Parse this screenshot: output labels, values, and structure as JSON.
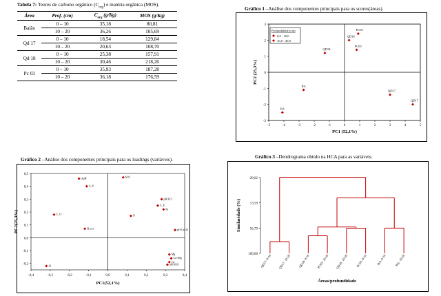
{
  "table": {
    "caption_label": "Tabela 7:",
    "caption_text": "Teores de carbono orgânico (C",
    "caption_sub": "org",
    "caption_rest": ") e matéria orgânica (MOS).",
    "headers": [
      "Área",
      "Prof. (cm)",
      "C",
      "MOS (g/Kg)"
    ],
    "header_sub": "org",
    "header_unit": " (g/Kg)",
    "groups": [
      {
        "area": "Baião",
        "rows": [
          [
            "0 – 10",
            "35,18",
            "80,81"
          ],
          [
            "10 – 20",
            "36,26",
            "105,69"
          ]
        ]
      },
      {
        "area": "Qd 17",
        "rows": [
          [
            "0 – 10",
            "18,54",
            "129,84"
          ],
          [
            "10 – 20",
            "20,63",
            "108,70"
          ]
        ]
      },
      {
        "area": "Qd 18",
        "rows": [
          [
            "0 – 10",
            "25,38",
            "157,91"
          ],
          [
            "10 – 20",
            "30,46",
            "218,26"
          ]
        ]
      },
      {
        "area": "Pc 03",
        "rows": [
          [
            "0 – 10",
            "35,93",
            "187,28"
          ],
          [
            "10 – 20",
            "36,18",
            "176,59"
          ]
        ]
      }
    ]
  },
  "figure1": {
    "label": "Gráfico 1",
    "title": " –Análise dos componentes principais para os scores(áreas).",
    "legend_title": "Profundidade (cm)",
    "colors": {
      "marker": "#c00000"
    }
  },
  "figure2": {
    "label": "Gráfico 2",
    "title": " –Análise dos componentes principais para os loadings (variáveis).",
    "colors": {
      "marker": "#c00000"
    }
  },
  "figure3": {
    "label": "Gráfico 3",
    "title": " –Dendrograma obtido na HCA para as variáveis.",
    "colors": {
      "line": "#c00000"
    }
  },
  "chart_data": [
    {
      "type": "scatter",
      "xlabel": "PC1 (52,1%)",
      "ylabel": "PC2 (25,3%)",
      "xlim": [
        -5,
        5
      ],
      "ylim": [
        -3,
        3
      ],
      "xticks": [
        "-5",
        "-4",
        "-3",
        "-2",
        "-1",
        "0",
        "1",
        "2",
        "3",
        "4",
        "5"
      ],
      "yticks": [
        "3",
        "2",
        "1",
        "0",
        "-1",
        "-2",
        "-3"
      ],
      "legend": [
        "0,0 - 10,0",
        "10,0 - 20,0"
      ],
      "points": [
        {
          "label": "PC03",
          "x": 0.9,
          "y": 2.4
        },
        {
          "label": "QD18",
          "x": 0.3,
          "y": 2.0
        },
        {
          "label": "QD18",
          "x": -1.3,
          "y": 1.2
        },
        {
          "label": "PC03",
          "x": 0.8,
          "y": 1.4
        },
        {
          "label": "BA",
          "x": -2.7,
          "y": -1.1
        },
        {
          "label": "BA",
          "x": -4.1,
          "y": -2.5
        },
        {
          "label": "QD17",
          "x": 3.0,
          "y": -1.4
        },
        {
          "label": "QD17",
          "x": 4.5,
          "y": -2.0
        }
      ]
    },
    {
      "type": "scatter",
      "xlabel": "PC1(52,1%)",
      "ylabel": "PC2(25,3%)",
      "xlim": [
        -0.4,
        0.4
      ],
      "ylim": [
        -0.25,
        0.5
      ],
      "xticks": [
        "-0,4",
        "-0,3",
        "-0,2",
        "-0,1",
        "0,0",
        "0,1",
        "0,2",
        "0,3",
        "0,4"
      ],
      "yticks": [
        "0,5",
        "0,4",
        "0,3",
        "0,2",
        "0,1",
        "0,0",
        "-0,1",
        "-0,2"
      ],
      "points": [
        {
          "label": "M.O",
          "x": 0.08,
          "y": 0.47
        },
        {
          "label": "ApH",
          "x": -0.15,
          "y": 0.46
        },
        {
          "label": "A_P",
          "x": -0.11,
          "y": 0.4
        },
        {
          "label": "C_O",
          "x": -0.28,
          "y": 0.18
        },
        {
          "label": "H_ext",
          "x": -0.12,
          "y": 0.07
        },
        {
          "label": "N",
          "x": 0.12,
          "y": 0.17
        },
        {
          "label": "pH KCl",
          "x": 0.28,
          "y": 0.3
        },
        {
          "label": "C_E",
          "x": 0.26,
          "y": 0.25
        },
        {
          "label": "Fe",
          "x": 0.29,
          "y": 0.22
        },
        {
          "label": "pH CaCl2",
          "x": 0.35,
          "y": 0.06
        },
        {
          "label": "Mg",
          "x": 0.32,
          "y": -0.13
        },
        {
          "label": "Ca+Mg",
          "x": 0.33,
          "y": -0.16
        },
        {
          "label": "Ca",
          "x": 0.32,
          "y": -0.19
        },
        {
          "label": "pH H2O",
          "x": 0.31,
          "y": -0.21
        },
        {
          "label": "Al",
          "x": -0.32,
          "y": -0.22
        }
      ]
    },
    {
      "type": "dendrogram",
      "xlabel": "Áreas/profundidade",
      "ylabel": "Similaridade (%)",
      "yticks": [
        "-29,62",
        "13,59",
        "56,79",
        "100,00"
      ],
      "leaves": [
        "QD17- 0-10",
        "QD17- 10-20",
        "QD18- 0-10",
        "PC03- 10-20",
        "QD18- 10-20",
        "PC03- 0-10",
        "BA- 0-10",
        "BA- 10-20"
      ],
      "merges": [
        {
          "a": 6,
          "b": 7,
          "similarity": 56.8
        },
        {
          "a": 2,
          "b": 3,
          "similarity": 70.0
        },
        {
          "a": 4,
          "b": 5,
          "similarity": 57.0
        },
        {
          "a": 0,
          "b": 1,
          "similarity": 80.0
        },
        {
          "a": "23",
          "b": "45",
          "similarity": 55.0
        },
        {
          "a": "2345",
          "b": "67",
          "similarity": 5.0
        },
        {
          "a": "01",
          "b": "234567",
          "similarity": -30.0
        }
      ]
    }
  ]
}
